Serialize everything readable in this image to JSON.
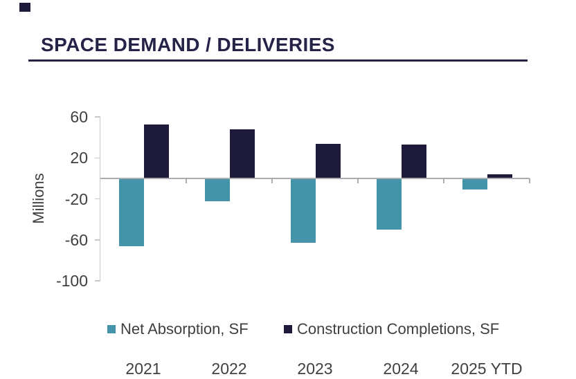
{
  "page": {
    "title": "SPACE DEMAND / DELIVERIES"
  },
  "chart_data": {
    "type": "bar",
    "title": "SPACE DEMAND / DELIVERIES",
    "categories": [
      "2021",
      "2022",
      "2023",
      "2024",
      "2025 YTD"
    ],
    "series": [
      {
        "name": "Net Absorption, SF",
        "color": "#4394A9",
        "values": [
          -66,
          -22,
          -63,
          -50,
          -11
        ]
      },
      {
        "name": "Construction Completions, SF",
        "color": "#1E1A3C",
        "values": [
          53,
          48,
          34,
          33,
          4
        ]
      }
    ],
    "xlabel": "",
    "ylabel": "Millions",
    "yticks": [
      60,
      20,
      -20,
      -60,
      -100
    ],
    "ylim": [
      -100,
      60
    ],
    "units": "millions of square feet",
    "grid": "off",
    "legend_position": "bottom"
  },
  "colors": {
    "title": "#262349",
    "accent_square": "#1E1A3C",
    "zero_axis": "#ABABAB",
    "y_axis": "#C9C9C9",
    "label_text": "#3F3F3F"
  }
}
